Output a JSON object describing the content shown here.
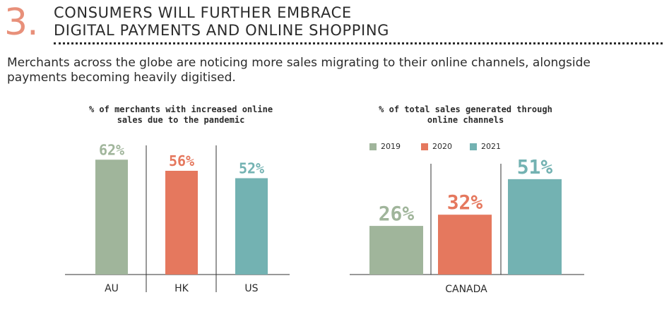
{
  "section": {
    "number": "3.",
    "title_line1": "CONSUMERS WILL FURTHER EMBRACE",
    "title_line2": "DIGITAL PAYMENTS AND ONLINE SHOPPING",
    "intro": "Merchants across the globe are noticing more sales migrating to their online channels, alongside payments becoming heavily digitised."
  },
  "colors": {
    "accent": "#e8907a",
    "green": "#a0b59b",
    "orange": "#e5785e",
    "teal": "#73b2b2"
  },
  "chart_data": [
    {
      "type": "bar",
      "title_line1": "% of merchants with increased online",
      "title_line2": "sales due to the pandemic",
      "categories": [
        "AU",
        "HK",
        "US"
      ],
      "values": [
        62,
        56,
        52
      ],
      "labels": [
        "62%",
        "56%",
        "52%"
      ],
      "colors": [
        "#a0b59b",
        "#e5785e",
        "#73b2b2"
      ],
      "ylim": [
        0,
        80
      ]
    },
    {
      "type": "bar",
      "title_line1": "% of total sales generated through",
      "title_line2": "online channels",
      "categories": [
        "CANADA"
      ],
      "series": [
        {
          "name": "2019",
          "values": [
            26
          ],
          "label": "26%",
          "color": "#a0b59b"
        },
        {
          "name": "2020",
          "values": [
            32
          ],
          "label": "32%",
          "color": "#e5785e"
        },
        {
          "name": "2021",
          "values": [
            51
          ],
          "label": "51%",
          "color": "#73b2b2"
        }
      ],
      "ylim": [
        0,
        80
      ]
    }
  ]
}
